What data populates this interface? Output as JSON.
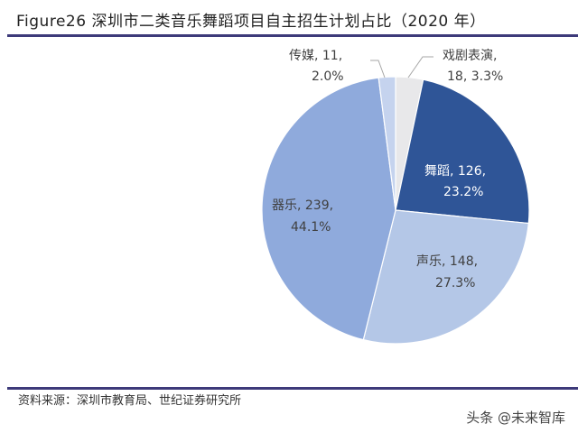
{
  "header": {
    "title": "Figure26 深圳市二类音乐舞蹈项目自主招生计划占比（2020 年）"
  },
  "footer": {
    "source": "资料来源：深圳市教育局、世纪证券研究所",
    "watermark": "头条 @未来智库"
  },
  "chart_data": {
    "type": "pie",
    "title": "深圳市二类音乐舞蹈项目自主招生计划占比（2020 年）",
    "start_angle": "12 o'clock, clockwise",
    "categories": [
      "戏剧表演",
      "舞蹈",
      "声乐",
      "器乐",
      "传媒"
    ],
    "values": [
      18,
      126,
      148,
      239,
      11
    ],
    "percentages": [
      3.3,
      23.2,
      27.3,
      44.1,
      2.0
    ],
    "colors": [
      "#e8e8ea",
      "#2f5597",
      "#b4c7e7",
      "#8faadc",
      "#c5d3ee"
    ],
    "labels": [
      {
        "line1": "戏剧表演,",
        "line2": "18, 3.3%"
      },
      {
        "line1": "舞蹈, 126,",
        "line2": "23.2%"
      },
      {
        "line1": "声乐, 148,",
        "line2": "27.3%"
      },
      {
        "line1": "器乐, 239,",
        "line2": "44.1%"
      },
      {
        "line1": "传媒, 11,",
        "line2": "2.0%"
      }
    ],
    "legend": "none (data labels on slices)"
  }
}
